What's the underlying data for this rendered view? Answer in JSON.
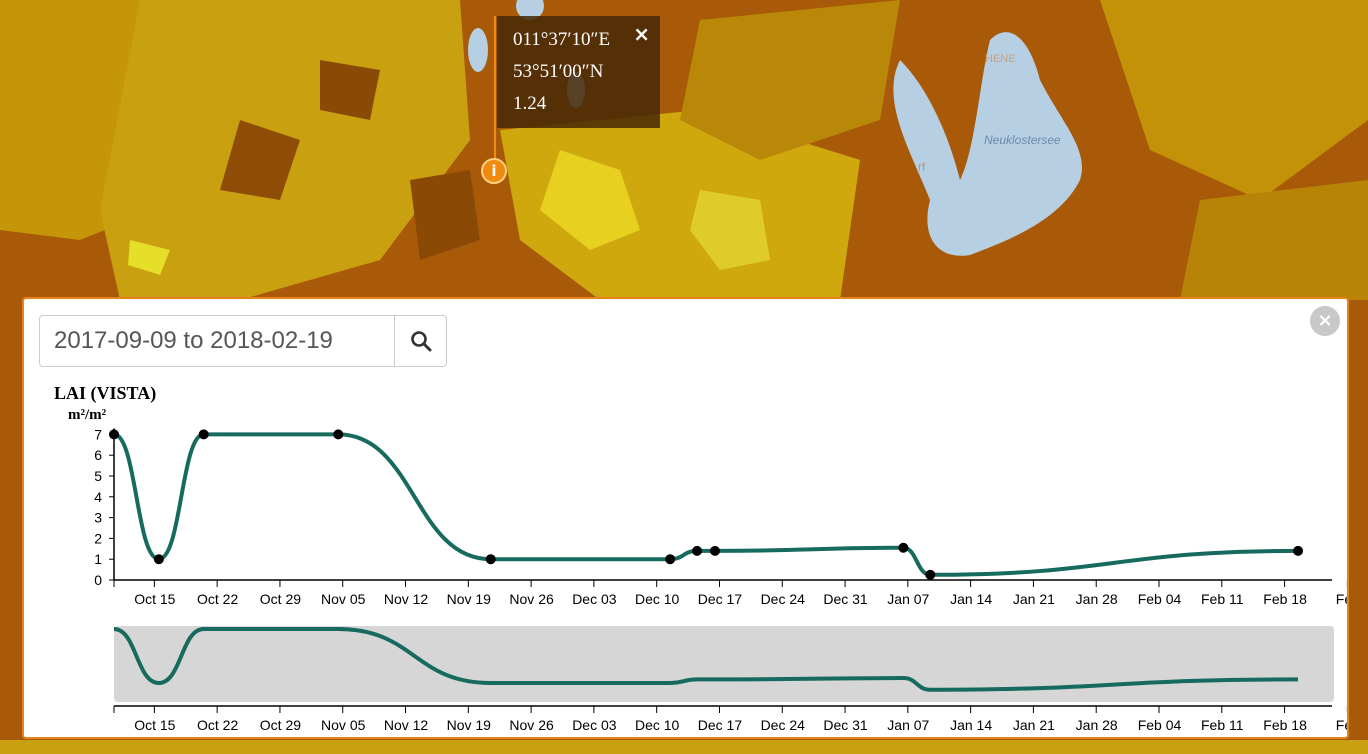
{
  "popup": {
    "longitude": "011°37′10″E",
    "latitude": "53°51′00″N",
    "value": "1.24",
    "close_label": "×"
  },
  "map": {
    "lake_label": "Neuklostersee",
    "place_label_partial": "rf",
    "place_label_partial2": "HENE"
  },
  "pin": {
    "icon": "info-icon",
    "label": "i"
  },
  "panel": {
    "date_range_value": "2017-09-09 to 2018-02-19",
    "close_label": "×"
  },
  "colors": {
    "accent": "#e8821a",
    "line": "#176a5e",
    "brush_bg": "#d6d6d6"
  },
  "chart_data": {
    "type": "line",
    "title": "LAI (VISTA)",
    "ylabel": "m²/m²",
    "ylim": [
      0,
      7
    ],
    "yticks": [
      "0",
      "1",
      "2",
      "3",
      "4",
      "5",
      "6",
      "7"
    ],
    "xticks": [
      "Oct 15",
      "Oct 22",
      "Oct 29",
      "Nov 05",
      "Nov 12",
      "Nov 19",
      "Nov 26",
      "Dec 03",
      "Dec 10",
      "Dec 17",
      "Dec 24",
      "Dec 31",
      "Jan 07",
      "Jan 14",
      "Jan 21",
      "Jan 28",
      "Feb 04",
      "Feb 11",
      "Feb 18",
      "Feb"
    ],
    "series": [
      {
        "points": [
          {
            "x": "2017-10-10",
            "y": 7.0
          },
          {
            "x": "2017-10-15",
            "y": 1.0
          },
          {
            "x": "2017-10-20",
            "y": 7.0
          },
          {
            "x": "2017-11-04",
            "y": 7.0
          },
          {
            "x": "2017-11-21",
            "y": 1.0
          },
          {
            "x": "2017-12-11",
            "y": 1.0
          },
          {
            "x": "2017-12-14",
            "y": 1.4
          },
          {
            "x": "2017-12-16",
            "y": 1.4
          },
          {
            "x": "2018-01-06",
            "y": 1.55
          },
          {
            "x": "2018-01-09",
            "y": 0.25
          },
          {
            "x": "2018-02-19",
            "y": 1.4
          }
        ]
      }
    ],
    "grid": false,
    "has_brush": true
  }
}
